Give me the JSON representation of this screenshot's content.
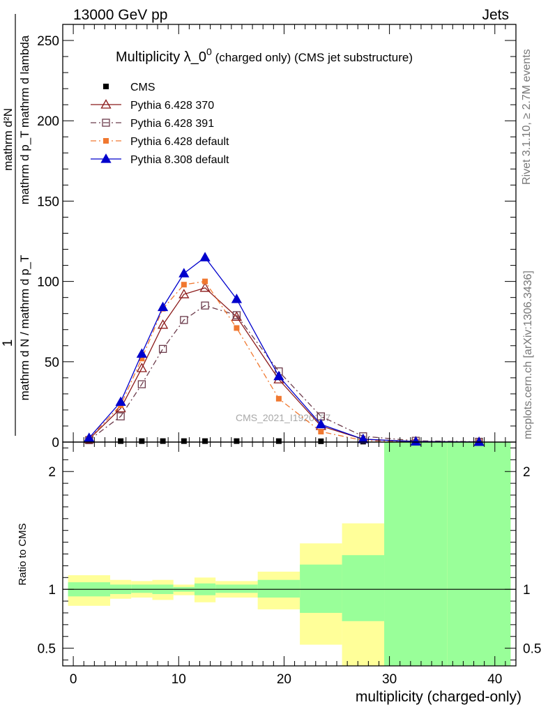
{
  "header": {
    "energy_label": "13000 GeV pp",
    "process_label": "Jets",
    "side_label_top": "Rivet 3.1.10, ≥ 2.7M events",
    "side_label_bottom": "mcplots.cern.ch [arXiv:1306.3436]"
  },
  "main_panel": {
    "title_main": "Multiplicity λ_0",
    "title_sup": "0",
    "title_suffix": " (charged only) (CMS jet substructure)",
    "ylabel_num": "mathrm d²N",
    "ylabel_den": "mathrm d p_T mathrm d lambda",
    "ylabel_pre_num": "1",
    "ylabel_pre_den": "mathrm d N / mathrm d p_T",
    "watermark": "CMS_2021_I1920187"
  },
  "ratio_panel": {
    "ylabel": "Ratio to CMS",
    "xlabel": "multiplicity (charged-only)"
  },
  "colors": {
    "cms": "#000000",
    "p6_370": "#8b1a1a",
    "p6_391": "#6b3a4a",
    "p6_default": "#f07830",
    "p8_default": "#0000cc",
    "band_inner": "#99ff99",
    "band_outer": "#ffff99"
  },
  "chart_data": [
    {
      "type": "line",
      "title": "Multiplicity λ_0^0 (charged only) (CMS jet substructure)",
      "xlabel": "multiplicity (charged-only)",
      "ylabel": "1/(mathrm d N / mathrm d p_T) mathrm d²N/(mathrm d p_T mathrm d lambda)",
      "xlim": [
        -1,
        42
      ],
      "ylim": [
        0,
        260
      ],
      "x_ticks": [
        0,
        10,
        20,
        30,
        40
      ],
      "y_ticks": [
        50,
        100,
        150,
        200,
        250
      ],
      "legend_position": "top-left",
      "series": [
        {
          "name": "CMS",
          "marker": "square-filled",
          "line": "none",
          "x": [
            1.5,
            4.5,
            6.5,
            8.5,
            10.5,
            12.5,
            15.5,
            19.5,
            23.5,
            27.5,
            32.5,
            38.5
          ],
          "y": [
            0.6,
            0.6,
            0.6,
            0.6,
            0.6,
            0.6,
            0.6,
            0.6,
            0.5,
            0.3,
            0.2,
            0.1
          ]
        },
        {
          "name": "Pythia 6.428 370",
          "marker": "triangle-open",
          "line": "solid",
          "x": [
            1.5,
            4.5,
            6.5,
            8.5,
            10.5,
            12.5,
            15.5,
            19.5,
            23.5,
            27.5,
            32.5,
            38.5
          ],
          "y": [
            1.8,
            21,
            46,
            73,
            92,
            96,
            78,
            39,
            10,
            1.8,
            0.4,
            0.1
          ]
        },
        {
          "name": "Pythia 6.428 391",
          "marker": "square-open",
          "line": "dashdot",
          "x": [
            1.5,
            4.5,
            6.5,
            8.5,
            10.5,
            12.5,
            15.5,
            19.5,
            23.5,
            27.5,
            32.5,
            38.5
          ],
          "y": [
            1.2,
            16,
            36,
            58,
            76,
            85,
            79,
            44,
            16,
            3.6,
            0.8,
            0.2
          ]
        },
        {
          "name": "Pythia 6.428 default",
          "marker": "square-filled",
          "line": "dashdot",
          "x": [
            1.5,
            4.5,
            6.5,
            8.5,
            10.5,
            12.5,
            15.5,
            19.5,
            23.5,
            27.5,
            32.5,
            38.5
          ],
          "y": [
            2.2,
            23,
            52,
            83,
            98,
            100,
            71,
            27,
            6.5,
            1.0,
            0.2,
            0.05
          ]
        },
        {
          "name": "Pythia 8.308 default",
          "marker": "triangle-filled",
          "line": "solid",
          "x": [
            1.5,
            4.5,
            6.5,
            8.5,
            10.5,
            12.5,
            15.5,
            19.5,
            23.5,
            27.5,
            32.5,
            38.5
          ],
          "y": [
            2.6,
            25,
            55,
            84,
            105,
            115,
            89,
            41,
            11,
            1.8,
            0.3,
            0.05
          ]
        }
      ]
    },
    {
      "type": "area",
      "title": "",
      "xlabel": "multiplicity (charged-only)",
      "ylabel": "Ratio to CMS",
      "xlim": [
        -1,
        42
      ],
      "ylim": [
        0.35,
        2.25
      ],
      "x_ticks": [
        0,
        10,
        20,
        30,
        40
      ],
      "y_ticks": [
        0.5,
        1,
        2
      ],
      "bins": [
        {
          "x0": -0.5,
          "x1": 3.5,
          "inner": [
            0.94,
            1.06
          ],
          "outer": [
            0.86,
            1.12
          ]
        },
        {
          "x0": 3.5,
          "x1": 5.5,
          "inner": [
            0.96,
            1.04
          ],
          "outer": [
            0.92,
            1.08
          ]
        },
        {
          "x0": 5.5,
          "x1": 7.5,
          "inner": [
            0.97,
            1.04
          ],
          "outer": [
            0.93,
            1.07
          ]
        },
        {
          "x0": 7.5,
          "x1": 9.5,
          "inner": [
            0.96,
            1.04
          ],
          "outer": [
            0.91,
            1.08
          ]
        },
        {
          "x0": 9.5,
          "x1": 11.5,
          "inner": [
            0.98,
            1.02
          ],
          "outer": [
            0.95,
            1.04
          ]
        },
        {
          "x0": 11.5,
          "x1": 13.5,
          "inner": [
            0.95,
            1.05
          ],
          "outer": [
            0.89,
            1.1
          ]
        },
        {
          "x0": 13.5,
          "x1": 17.5,
          "inner": [
            0.97,
            1.04
          ],
          "outer": [
            0.93,
            1.07
          ]
        },
        {
          "x0": 17.5,
          "x1": 21.5,
          "inner": [
            0.93,
            1.08
          ],
          "outer": [
            0.83,
            1.15
          ]
        },
        {
          "x0": 21.5,
          "x1": 25.5,
          "inner": [
            0.8,
            1.21
          ],
          "outer": [
            0.53,
            1.39
          ]
        },
        {
          "x0": 25.5,
          "x1": 29.5,
          "inner": [
            0.73,
            1.29
          ],
          "outer": [
            0.35,
            1.56
          ]
        },
        {
          "x0": 29.5,
          "x1": 35.5,
          "inner": [
            0.35,
            2.25
          ],
          "outer": [
            0.35,
            2.25
          ]
        },
        {
          "x0": 35.5,
          "x1": 41.5,
          "inner": [
            0.35,
            2.25
          ],
          "outer": [
            0.35,
            2.25
          ]
        }
      ]
    }
  ]
}
